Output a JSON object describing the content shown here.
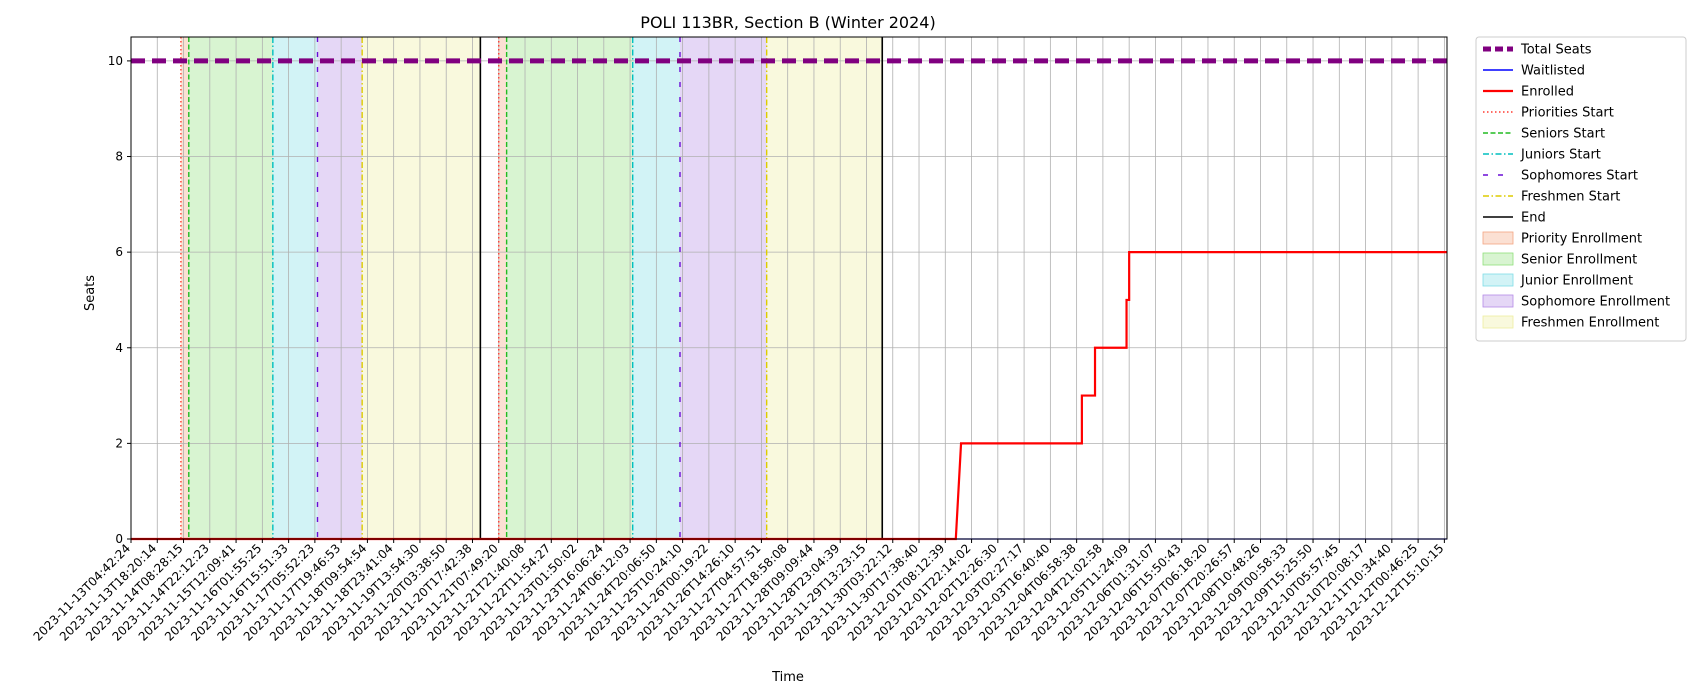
{
  "chart_data": {
    "type": "line",
    "title": "POLI 113BR, Section B (Winter 2024)",
    "xlabel": "Time",
    "ylabel": "Seats",
    "ylim": [
      0,
      10.5
    ],
    "yticks": [
      0,
      2,
      4,
      6,
      8,
      10
    ],
    "grid": true,
    "legend_placement": "outside-top-right",
    "x_tick_labels": [
      "2023-11-13T04:42:24",
      "2023-11-13T18:20:14",
      "2023-11-14T08:28:15",
      "2023-11-14T22:12:23",
      "2023-11-15T12:09:41",
      "2023-11-16T01:55:25",
      "2023-11-16T15:51:33",
      "2023-11-17T05:52:23",
      "2023-11-17T19:46:53",
      "2023-11-18T09:54:54",
      "2023-11-18T23:41:04",
      "2023-11-19T13:54:30",
      "2023-11-20T03:38:50",
      "2023-11-20T17:42:38",
      "2023-11-21T07:49:20",
      "2023-11-21T21:40:08",
      "2023-11-22T11:54:27",
      "2023-11-23T01:50:02",
      "2023-11-23T16:06:24",
      "2023-11-24T06:12:03",
      "2023-11-24T20:06:50",
      "2023-11-25T10:24:10",
      "2023-11-26T00:19:22",
      "2023-11-26T14:26:10",
      "2023-11-27T04:57:51",
      "2023-11-27T18:58:08",
      "2023-11-28T09:09:44",
      "2023-11-28T23:04:39",
      "2023-11-29T13:23:15",
      "2023-11-30T03:22:12",
      "2023-11-30T17:38:40",
      "2023-12-01T08:12:39",
      "2023-12-01T22:14:02",
      "2023-12-02T12:26:30",
      "2023-12-03T02:27:17",
      "2023-12-03T16:40:40",
      "2023-12-04T06:58:38",
      "2023-12-04T21:02:58",
      "2023-12-05T11:24:09",
      "2023-12-06T01:31:07",
      "2023-12-06T15:50:43",
      "2023-12-07T06:18:20",
      "2023-12-07T20:26:57",
      "2023-12-08T10:48:26",
      "2023-12-09T00:58:33",
      "2023-12-09T15:25:50",
      "2023-12-10T05:57:45",
      "2023-12-10T20:08:17",
      "2023-12-11T10:34:40",
      "2023-12-12T00:46:25",
      "2023-12-12T15:10:15"
    ],
    "x_range": [
      0,
      50.1
    ],
    "series": [
      {
        "name": "Total Seats",
        "color": "#800080",
        "style": "dashed-thick",
        "points": [
          [
            0,
            10
          ],
          [
            50.1,
            10
          ]
        ]
      },
      {
        "name": "Waitlisted",
        "color": "#0000ff",
        "style": "solid",
        "points": [
          [
            0,
            0
          ],
          [
            50.1,
            0
          ]
        ]
      },
      {
        "name": "Enrolled",
        "color": "#ff0000",
        "style": "solid",
        "points": [
          [
            0,
            0
          ],
          [
            31.4,
            0
          ],
          [
            31.6,
            2
          ],
          [
            36.2,
            2
          ],
          [
            36.2,
            3
          ],
          [
            36.7,
            3
          ],
          [
            36.7,
            4
          ],
          [
            37.9,
            4
          ],
          [
            37.9,
            5
          ],
          [
            38.0,
            5
          ],
          [
            38.0,
            6
          ],
          [
            50.1,
            6
          ]
        ]
      }
    ],
    "periods": [
      {
        "label": "Priority Enrollment",
        "color": "#f4a582",
        "spans": [
          [
            1.9,
            2.2
          ],
          [
            14.0,
            14.3
          ]
        ]
      },
      {
        "label": "Senior Enrollment",
        "color": "#90e07a",
        "spans": [
          [
            2.2,
            5.4
          ],
          [
            14.3,
            19.1
          ]
        ]
      },
      {
        "label": "Junior Enrollment",
        "color": "#7fdde6",
        "spans": [
          [
            5.4,
            7.1
          ],
          [
            19.1,
            20.9
          ]
        ]
      },
      {
        "label": "Sophomore Enrollment",
        "color": "#b48be6",
        "spans": [
          [
            7.1,
            8.8
          ],
          [
            20.9,
            24.2
          ]
        ]
      },
      {
        "label": "Freshmen Enrollment",
        "color": "#eeee9e",
        "spans": [
          [
            8.8,
            13.3
          ],
          [
            24.2,
            28.6
          ]
        ]
      }
    ],
    "vlines": [
      {
        "label": "Priorities Start",
        "color": "#ff3b30",
        "style": "dotted",
        "x": [
          1.9,
          14.0
        ]
      },
      {
        "label": "Seniors Start",
        "color": "#22bb22",
        "style": "dashed",
        "x": [
          2.2,
          14.3
        ]
      },
      {
        "label": "Juniors Start",
        "color": "#00bfbf",
        "style": "dashdot",
        "x": [
          5.4,
          19.1
        ]
      },
      {
        "label": "Sophomores Start",
        "color": "#6a0dd6",
        "style": "loosedash",
        "x": [
          7.1,
          20.9
        ]
      },
      {
        "label": "Freshmen Start",
        "color": "#ddcc00",
        "style": "dashdot",
        "x": [
          8.8,
          24.2
        ]
      },
      {
        "label": "End",
        "color": "#000000",
        "style": "solid",
        "x": [
          13.3,
          28.6
        ]
      }
    ]
  },
  "legend": {
    "items": [
      {
        "label": "Total Seats",
        "kind": "line",
        "color": "#800080",
        "style": "dashed-thick"
      },
      {
        "label": "Waitlisted",
        "kind": "line",
        "color": "#0000ff",
        "style": "solid"
      },
      {
        "label": "Enrolled",
        "kind": "line",
        "color": "#ff0000",
        "style": "solid-thick"
      },
      {
        "label": "Priorities Start",
        "kind": "line",
        "color": "#ff3b30",
        "style": "dotted"
      },
      {
        "label": "Seniors Start",
        "kind": "line",
        "color": "#22bb22",
        "style": "dashed"
      },
      {
        "label": "Juniors Start",
        "kind": "line",
        "color": "#00bfbf",
        "style": "dashdot"
      },
      {
        "label": "Sophomores Start",
        "kind": "line",
        "color": "#6a0dd6",
        "style": "loosedash"
      },
      {
        "label": "Freshmen Start",
        "kind": "line",
        "color": "#ddcc00",
        "style": "dashdot"
      },
      {
        "label": "End",
        "kind": "line",
        "color": "#000000",
        "style": "solid"
      },
      {
        "label": "Priority Enrollment",
        "kind": "patch",
        "color": "#f4a582"
      },
      {
        "label": "Senior Enrollment",
        "kind": "patch",
        "color": "#90e07a"
      },
      {
        "label": "Junior Enrollment",
        "kind": "patch",
        "color": "#7fdde6"
      },
      {
        "label": "Sophomore Enrollment",
        "kind": "patch",
        "color": "#b48be6"
      },
      {
        "label": "Freshmen Enrollment",
        "kind": "patch",
        "color": "#eeee9e"
      }
    ]
  }
}
